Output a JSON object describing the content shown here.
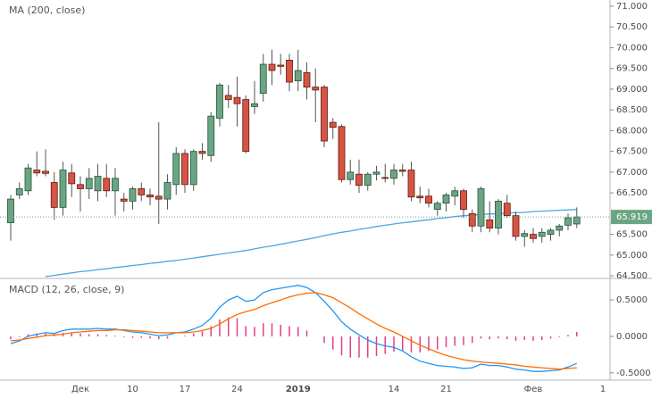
{
  "chart_data": [
    {
      "type": "candlestick",
      "title": "MA (200, close)",
      "categories": [
        null,
        null,
        null,
        null,
        null,
        null,
        null,
        null,
        "Дек",
        null,
        null,
        null,
        null,
        null,
        "10",
        null,
        null,
        null,
        null,
        null,
        "17",
        null,
        null,
        null,
        null,
        null,
        "24",
        null,
        null,
        null,
        null,
        null,
        null,
        "2019",
        null,
        null,
        null,
        null,
        null,
        null,
        null,
        null,
        null,
        null,
        "14",
        null,
        null,
        null,
        null,
        null,
        "21",
        null,
        null,
        null,
        null,
        null,
        null,
        null,
        null,
        null,
        "Фев",
        null,
        null,
        null,
        null,
        null,
        null,
        null,
        "1"
      ],
      "open": [
        65.78,
        66.45,
        66.55,
        67.05,
        67.02,
        66.75,
        66.15,
        66.98,
        66.7,
        66.6,
        66.55,
        66.85,
        66.55,
        66.35,
        66.3,
        66.6,
        66.45,
        66.42,
        66.35,
        66.7,
        67.45,
        66.7,
        67.5,
        67.4,
        68.3,
        68.85,
        68.8,
        68.75,
        68.58,
        68.9,
        69.6,
        69.58,
        69.7,
        69.2,
        69.4,
        69.05,
        69.05,
        68.2,
        68.1,
        66.82,
        66.95,
        66.68,
        66.95,
        66.87,
        66.85,
        67.05,
        67.05,
        66.42,
        66.42,
        66.1,
        66.25,
        66.42,
        66.55,
        66.0,
        65.7,
        65.85,
        65.65,
        66.25,
        65.95,
        65.45,
        65.5,
        65.45,
        65.5,
        65.6,
        65.72,
        65.75,
        null,
        null,
        null
      ],
      "high": [
        66.45,
        66.75,
        67.2,
        67.5,
        67.55,
        67.0,
        67.25,
        67.2,
        66.9,
        67.1,
        67.2,
        67.2,
        67.1,
        66.5,
        66.65,
        66.75,
        66.6,
        68.2,
        66.95,
        67.6,
        67.55,
        67.55,
        67.7,
        68.45,
        69.15,
        69.1,
        69.3,
        68.85,
        69.2,
        69.85,
        69.95,
        69.85,
        69.85,
        69.95,
        69.65,
        69.5,
        69.1,
        68.3,
        68.15,
        67.3,
        67.3,
        67.0,
        67.15,
        67.2,
        67.2,
        67.2,
        67.25,
        66.65,
        66.6,
        66.3,
        66.5,
        66.65,
        66.6,
        66.1,
        66.65,
        66.3,
        66.35,
        66.45,
        66.05,
        65.6,
        65.65,
        65.65,
        65.65,
        65.75,
        66.0,
        66.15,
        null,
        null,
        null
      ],
      "low": [
        65.35,
        66.35,
        66.45,
        66.9,
        66.9,
        65.85,
        65.95,
        66.4,
        66.05,
        66.35,
        66.3,
        66.4,
        65.95,
        66.05,
        66.1,
        66.3,
        66.2,
        65.75,
        66.1,
        66.45,
        66.5,
        66.55,
        67.3,
        67.25,
        68.1,
        68.55,
        68.1,
        67.45,
        68.4,
        68.7,
        69.1,
        69.35,
        68.95,
        68.95,
        68.75,
        68.2,
        67.6,
        67.8,
        66.75,
        66.7,
        66.5,
        66.55,
        66.8,
        66.75,
        66.7,
        66.9,
        66.3,
        66.25,
        66.15,
        65.95,
        66.05,
        66.2,
        65.9,
        65.55,
        65.55,
        65.55,
        65.5,
        65.9,
        65.35,
        65.2,
        65.3,
        65.3,
        65.35,
        65.45,
        65.6,
        65.65,
        null,
        null,
        null
      ],
      "close": [
        66.35,
        66.6,
        67.1,
        66.98,
        66.97,
        66.15,
        67.05,
        66.72,
        66.6,
        66.85,
        66.9,
        66.55,
        66.85,
        66.3,
        66.6,
        66.45,
        66.4,
        66.35,
        66.75,
        67.45,
        66.7,
        67.5,
        67.45,
        68.35,
        69.1,
        68.75,
        68.65,
        67.5,
        68.65,
        69.6,
        69.45,
        69.55,
        69.17,
        69.45,
        69.05,
        68.98,
        67.75,
        68.08,
        66.82,
        67.0,
        66.68,
        66.95,
        67.0,
        66.85,
        67.05,
        67.02,
        66.4,
        66.38,
        66.25,
        66.25,
        66.45,
        66.55,
        66.1,
        65.7,
        66.6,
        65.65,
        66.3,
        65.95,
        65.45,
        65.52,
        65.4,
        65.55,
        65.6,
        65.7,
        65.9,
        65.919,
        null,
        null,
        null
      ],
      "up_color": "#6ba583",
      "down_color": "#d75442",
      "series": [
        {
          "color": "#4da6e0",
          "values": [
            null,
            null,
            null,
            null,
            64.48,
            64.51,
            64.54,
            64.57,
            64.6,
            64.62,
            64.65,
            64.67,
            64.7,
            64.72,
            64.75,
            64.77,
            64.8,
            64.82,
            64.85,
            64.87,
            64.9,
            64.93,
            64.96,
            64.99,
            65.02,
            65.05,
            65.08,
            65.11,
            65.15,
            65.19,
            65.22,
            65.26,
            65.3,
            65.34,
            65.38,
            65.42,
            65.47,
            65.51,
            65.55,
            65.58,
            65.62,
            65.65,
            65.69,
            65.72,
            65.75,
            65.78,
            65.8,
            65.83,
            65.85,
            65.88,
            65.9,
            65.93,
            65.95,
            65.96,
            65.98,
            65.99,
            66.0,
            66.01,
            66.02,
            66.03,
            66.05,
            66.06,
            66.07,
            66.08,
            66.09,
            66.1,
            null,
            null,
            null
          ]
        }
      ],
      "ylim": [
        64.48,
        71.15
      ],
      "yticks": [
        {
          "value": 64.5,
          "label": "64.500"
        },
        {
          "value": 65,
          "label": "65.000"
        },
        {
          "value": 65.5,
          "label": "65.500"
        },
        {
          "value": 66.5,
          "label": "66.500"
        },
        {
          "value": 67,
          "label": "67.000"
        },
        {
          "value": 67.5,
          "label": "67.500"
        },
        {
          "value": 68,
          "label": "68.000"
        },
        {
          "value": 68.5,
          "label": "68.500"
        },
        {
          "value": 69,
          "label": "69.000"
        },
        {
          "value": 69.5,
          "label": "69.500"
        },
        {
          "value": 70,
          "label": "70.000"
        },
        {
          "value": 70.5,
          "label": "70.500"
        },
        {
          "value": 71,
          "label": "71.000"
        }
      ],
      "grid": false
    },
    {
      "type": "line",
      "title": "MACD (12, 26, close, 9)",
      "series": [
        {
          "color": "#e0408a",
          "style": "bar",
          "values": [
            -0.04,
            -0.01,
            0.03,
            0.04,
            0.04,
            0.02,
            0.05,
            0.05,
            0.04,
            0.03,
            0.03,
            0.02,
            0.01,
            -0.01,
            -0.02,
            -0.02,
            -0.03,
            -0.04,
            -0.03,
            0,
            0.01,
            0.04,
            0.07,
            0.14,
            0.23,
            0.26,
            0.25,
            0.14,
            0.13,
            0.18,
            0.18,
            0.16,
            0.14,
            0.13,
            0.08,
            0,
            -0.09,
            -0.18,
            -0.26,
            -0.29,
            -0.29,
            -0.29,
            -0.27,
            -0.24,
            -0.21,
            -0.2,
            -0.22,
            -0.22,
            -0.2,
            -0.18,
            -0.15,
            -0.13,
            -0.12,
            -0.09,
            -0.03,
            -0.04,
            -0.03,
            -0.04,
            -0.06,
            -0.05,
            -0.06,
            -0.05,
            -0.03,
            -0.01,
            0.02,
            0.06,
            null,
            null,
            null
          ]
        },
        {
          "color": "#2196f3",
          "values": [
            -0.1,
            -0.06,
            0,
            0.03,
            0.05,
            0.04,
            0.08,
            0.1,
            0.1,
            0.1,
            0.11,
            0.1,
            0.1,
            0.08,
            0.06,
            0.05,
            0.03,
            0.01,
            0.02,
            0.05,
            0.06,
            0.1,
            0.15,
            0.25,
            0.4,
            0.5,
            0.55,
            0.48,
            0.5,
            0.6,
            0.64,
            0.66,
            0.68,
            0.7,
            0.67,
            0.6,
            0.48,
            0.35,
            0.2,
            0.1,
            0.02,
            -0.05,
            -0.1,
            -0.13,
            -0.15,
            -0.2,
            -0.28,
            -0.34,
            -0.37,
            -0.4,
            -0.41,
            -0.42,
            -0.44,
            -0.43,
            -0.38,
            -0.4,
            -0.4,
            -0.42,
            -0.45,
            -0.46,
            -0.48,
            -0.48,
            -0.47,
            -0.46,
            -0.42,
            -0.37,
            null,
            null,
            null
          ]
        },
        {
          "color": "#ff6d00",
          "values": [
            -0.06,
            -0.05,
            -0.03,
            -0.01,
            0.01,
            0.02,
            0.03,
            0.05,
            0.06,
            0.07,
            0.08,
            0.08,
            0.09,
            0.09,
            0.08,
            0.07,
            0.06,
            0.05,
            0.05,
            0.05,
            0.05,
            0.06,
            0.08,
            0.11,
            0.17,
            0.24,
            0.3,
            0.34,
            0.37,
            0.42,
            0.46,
            0.5,
            0.54,
            0.57,
            0.59,
            0.6,
            0.57,
            0.53,
            0.46,
            0.39,
            0.31,
            0.24,
            0.17,
            0.11,
            0.06,
            0,
            -0.06,
            -0.12,
            -0.17,
            -0.22,
            -0.26,
            -0.29,
            -0.32,
            -0.34,
            -0.35,
            -0.36,
            -0.37,
            -0.38,
            -0.39,
            -0.41,
            -0.42,
            -0.43,
            -0.44,
            -0.45,
            -0.44,
            -0.43,
            null,
            null,
            null
          ]
        }
      ],
      "ylim": [
        -0.6,
        0.77
      ],
      "yticks": [
        {
          "value": -0.5,
          "label": "-0.5000"
        },
        {
          "value": 0,
          "label": "0.0000"
        },
        {
          "value": 0.5,
          "label": "0.5000"
        }
      ],
      "grid": false
    }
  ]
}
